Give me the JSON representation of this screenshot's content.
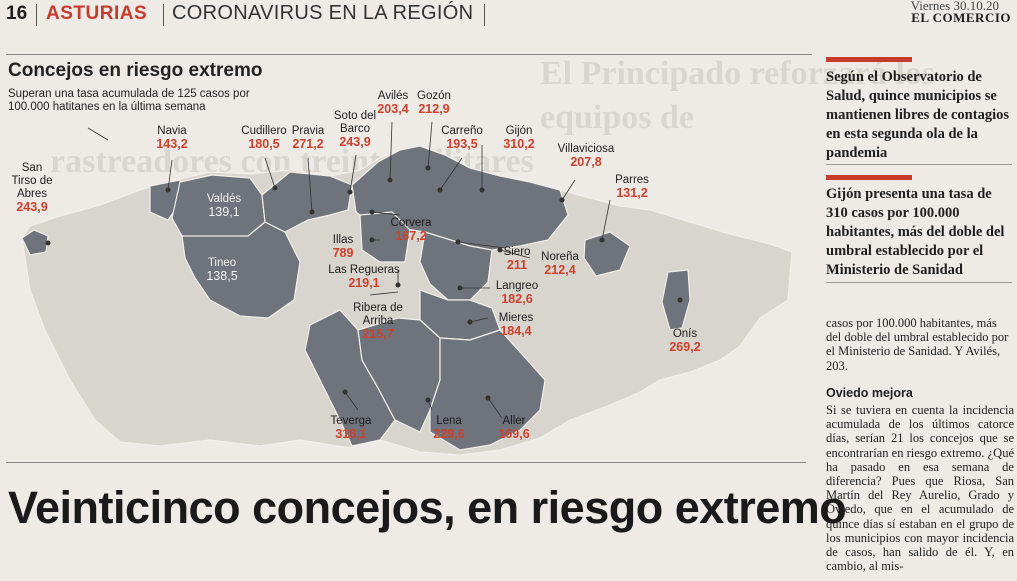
{
  "header": {
    "page_number": "16",
    "section": "ASTURIAS",
    "subsection": "CORONAVIRUS EN LA REGIÓN",
    "date": "Viernes 30.10.20",
    "newspaper": "EL COMERCIO"
  },
  "background_headline": {
    "line1": "El Principado reforzará los equipos de",
    "line2": "rastreadores con treinta militares"
  },
  "map": {
    "title": "Concejos en riesgo extremo",
    "subtitle": "Superan una tasa acumulada de 125 casos por 100.000 hatitanes en la última semana",
    "colors": {
      "extreme": "#6f737b",
      "other": "#d8d4ce",
      "border": "#f2efea",
      "value": "#d0402c"
    },
    "councils": [
      {
        "name": "San Tirso de Abres",
        "value": "243,9"
      },
      {
        "name": "Navia",
        "value": "143,2"
      },
      {
        "name": "Valdés",
        "value": "139,1"
      },
      {
        "name": "Tineo",
        "value": "138,5"
      },
      {
        "name": "Cudillero",
        "value": "180,5"
      },
      {
        "name": "Pravia",
        "value": "271,2"
      },
      {
        "name": "Soto del Barco",
        "value": "243,9"
      },
      {
        "name": "Avilés",
        "value": "203,4"
      },
      {
        "name": "Gozón",
        "value": "212,9"
      },
      {
        "name": "Carreño",
        "value": "193,5"
      },
      {
        "name": "Gijón",
        "value": "310,2"
      },
      {
        "name": "Villaviciosa",
        "value": "207,8"
      },
      {
        "name": "Parres",
        "value": "131,2"
      },
      {
        "name": "Corvera",
        "value": "167,2"
      },
      {
        "name": "Illas",
        "value": "789"
      },
      {
        "name": "Las Regueras",
        "value": "219,1"
      },
      {
        "name": "Siero",
        "value": "211"
      },
      {
        "name": "Noreña",
        "value": "212,4"
      },
      {
        "name": "Langreo",
        "value": "182,6"
      },
      {
        "name": "Ribera de Arriba",
        "value": "215,7"
      },
      {
        "name": "Mieres",
        "value": "184,4"
      },
      {
        "name": "Onís",
        "value": "269,2"
      },
      {
        "name": "Teverga",
        "value": "318,1"
      },
      {
        "name": "Lena",
        "value": "229,6"
      },
      {
        "name": "Aller",
        "value": "169,6"
      }
    ]
  },
  "headline": "Veinticinco concejos, en riesgo extremo",
  "sidebar": {
    "highlight1": "Según el Observatorio de Salud, quince municipios se mantienen libres de contagios en esta segunda ola de la pandemia",
    "highlight2": "Gijón presenta una tasa de 310 casos por 100.000 habitantes, más del doble del umbral establecido por el Ministerio de Sanidad",
    "body1": "casos por 100.000 habitantes, más del doble del umbral establecido por el Ministerio de Sanidad. Y Avilés, 203.",
    "subheading": "Oviedo mejora",
    "body2": "Si se tuviera en cuenta la incidencia acumulada de los últimos catorce días, serían 21 los concejos que se encontrarían en riesgo extremo. ¿Qué ha pasado en esa semana de diferencia? Pues que Riosa, San Martín del Rey Aurelio, Grado y Oviedo, que en el acumulado de quince días sí estaban en el grupo de los municipios con mayor incidencia de casos, han salido de él. Y, en cambio, al mis-"
  }
}
